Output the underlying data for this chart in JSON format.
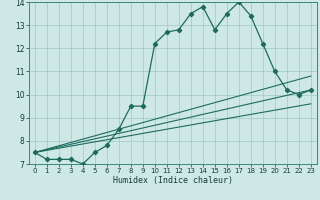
{
  "xlabel": "Humidex (Indice chaleur)",
  "xlim": [
    -0.5,
    23.5
  ],
  "ylim": [
    7,
    14
  ],
  "xticks": [
    0,
    1,
    2,
    3,
    4,
    5,
    6,
    7,
    8,
    9,
    10,
    11,
    12,
    13,
    14,
    15,
    16,
    17,
    18,
    19,
    20,
    21,
    22,
    23
  ],
  "yticks": [
    7,
    8,
    9,
    10,
    11,
    12,
    13,
    14
  ],
  "bg_color": "#cde8e5",
  "line_color": "#1e6b5e",
  "grid_color": "#a0c8c4",
  "series1_x": [
    0,
    1,
    2,
    3,
    4,
    5,
    6,
    7,
    8,
    9,
    10,
    11,
    12,
    13,
    14,
    15,
    16,
    17,
    18,
    19,
    20,
    21,
    22,
    23
  ],
  "series1_y": [
    7.5,
    7.2,
    7.2,
    7.2,
    7.0,
    7.5,
    7.8,
    8.5,
    9.5,
    9.5,
    12.2,
    12.7,
    12.8,
    13.5,
    13.8,
    12.8,
    13.5,
    14.0,
    13.4,
    12.2,
    11.0,
    10.2,
    10.0,
    10.2
  ],
  "line2_x": [
    0,
    23
  ],
  "line2_y": [
    7.5,
    10.8
  ],
  "line3_x": [
    0,
    23
  ],
  "line3_y": [
    7.5,
    10.2
  ],
  "line4_x": [
    0,
    23
  ],
  "line4_y": [
    7.5,
    9.6
  ]
}
